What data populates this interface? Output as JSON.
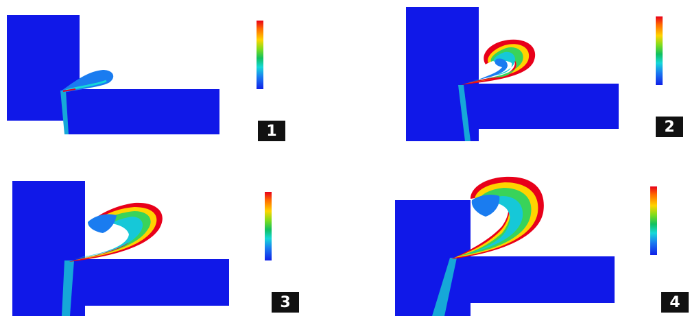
{
  "panels": [
    {
      "badge": "1",
      "colorbar": {
        "title": "",
        "ticks": [
          "",
          "",
          "",
          "",
          "",
          "",
          "",
          ""
        ]
      }
    },
    {
      "badge": "2",
      "colorbar": {
        "title": "",
        "ticks": [
          "",
          "",
          "",
          "",
          "",
          "",
          "",
          ""
        ]
      }
    },
    {
      "badge": "3",
      "colorbar": {
        "title": "",
        "ticks": [
          "",
          "",
          "",
          "",
          "",
          "",
          "",
          ""
        ]
      }
    },
    {
      "badge": "4",
      "colorbar": {
        "title": "",
        "ticks": [
          "",
          "",
          "",
          "",
          "",
          "",
          "",
          ""
        ]
      }
    }
  ],
  "colors": {
    "material": "#1018e8",
    "cool": "#16c8d8",
    "mid": "#39d35a",
    "warm": "#ffd400",
    "hot": "#e8001a"
  }
}
